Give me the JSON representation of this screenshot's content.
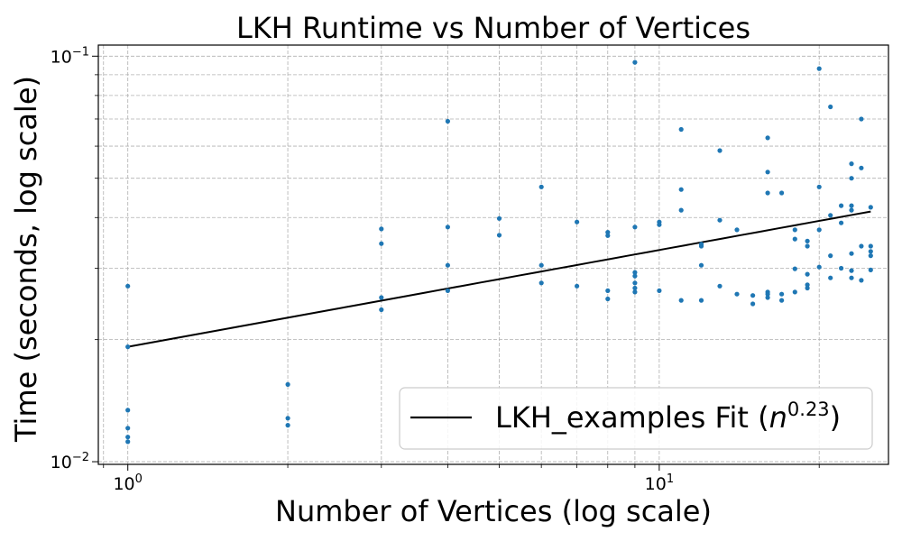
{
  "chart_data": {
    "type": "scatter",
    "title": "LKH Runtime vs Number of Vertices",
    "xlabel": "Number of Vertices (log scale)",
    "ylabel": "Time (seconds, log scale)",
    "xscale": "log",
    "yscale": "log",
    "xlim": [
      0.88,
      27
    ],
    "ylim": [
      0.00985,
      0.1065
    ],
    "grid": true,
    "x_ticks": [
      {
        "value": 1,
        "base": "10",
        "exp": "0"
      },
      {
        "value": 10,
        "base": "10",
        "exp": "1"
      }
    ],
    "y_ticks": [
      {
        "value": 0.01,
        "base": "10",
        "exp": "−2"
      },
      {
        "value": 0.1,
        "base": "10",
        "exp": "−1"
      }
    ],
    "legend": {
      "position": "bottom-right",
      "entries": [
        {
          "label": "LKH_examples Fit (",
          "math_base": "n",
          "math_exp": "0.23",
          "label_end": ")",
          "color": "#000000",
          "marker": "line"
        }
      ]
    },
    "series": [
      {
        "kind": "points",
        "color": "#1f77b4",
        "points": [
          [
            1,
            0.0271
          ],
          [
            1,
            0.0192
          ],
          [
            1,
            0.0134
          ],
          [
            1,
            0.0121
          ],
          [
            1,
            0.0115
          ],
          [
            1,
            0.0112
          ],
          [
            2,
            0.0155
          ],
          [
            2,
            0.0128
          ],
          [
            2,
            0.0123
          ],
          [
            3,
            0.0375
          ],
          [
            3,
            0.0345
          ],
          [
            3,
            0.0254
          ],
          [
            3,
            0.0237
          ],
          [
            4,
            0.0691
          ],
          [
            4,
            0.0379
          ],
          [
            4,
            0.0305
          ],
          [
            4,
            0.0264
          ],
          [
            5,
            0.0398
          ],
          [
            5,
            0.0362
          ],
          [
            6,
            0.0476
          ],
          [
            6,
            0.0305
          ],
          [
            6,
            0.0276
          ],
          [
            7,
            0.039
          ],
          [
            7,
            0.0271
          ],
          [
            8,
            0.0368
          ],
          [
            8,
            0.0361
          ],
          [
            8,
            0.0264
          ],
          [
            8,
            0.0252
          ],
          [
            9,
            0.0966
          ],
          [
            9,
            0.0379
          ],
          [
            9,
            0.0293
          ],
          [
            9,
            0.0287
          ],
          [
            9,
            0.0276
          ],
          [
            9,
            0.0268
          ],
          [
            9,
            0.0262
          ],
          [
            10,
            0.039
          ],
          [
            10,
            0.0384
          ],
          [
            10,
            0.0264
          ],
          [
            11,
            0.066
          ],
          [
            11,
            0.0469
          ],
          [
            11,
            0.0417
          ],
          [
            11,
            0.025
          ],
          [
            12,
            0.0344
          ],
          [
            12,
            0.034
          ],
          [
            12,
            0.0305
          ],
          [
            12,
            0.025
          ],
          [
            13,
            0.0585
          ],
          [
            13,
            0.0394
          ],
          [
            13,
            0.0271
          ],
          [
            14,
            0.0373
          ],
          [
            14,
            0.0259
          ],
          [
            15,
            0.0257
          ],
          [
            15,
            0.0245
          ],
          [
            16,
            0.0629
          ],
          [
            16,
            0.0518
          ],
          [
            16,
            0.046
          ],
          [
            16,
            0.0262
          ],
          [
            16,
            0.0259
          ],
          [
            16,
            0.0254
          ],
          [
            17,
            0.046
          ],
          [
            17,
            0.0259
          ],
          [
            17,
            0.025
          ],
          [
            18,
            0.0373
          ],
          [
            18,
            0.0354
          ],
          [
            18,
            0.0299
          ],
          [
            18,
            0.0262
          ],
          [
            19,
            0.035
          ],
          [
            19,
            0.034
          ],
          [
            19,
            0.029
          ],
          [
            19,
            0.0273
          ],
          [
            19,
            0.0268
          ],
          [
            20,
            0.0932
          ],
          [
            20,
            0.0476
          ],
          [
            20,
            0.0373
          ],
          [
            20,
            0.0302
          ],
          [
            21,
            0.075
          ],
          [
            21,
            0.0405
          ],
          [
            21,
            0.0322
          ],
          [
            21,
            0.0284
          ],
          [
            22,
            0.0428
          ],
          [
            22,
            0.0388
          ],
          [
            22,
            0.03
          ],
          [
            23,
            0.0543
          ],
          [
            23,
            0.05
          ],
          [
            23,
            0.0428
          ],
          [
            23,
            0.0417
          ],
          [
            23,
            0.0326
          ],
          [
            23,
            0.0296
          ],
          [
            23,
            0.0284
          ],
          [
            24,
            0.07
          ],
          [
            24,
            0.053
          ],
          [
            24,
            0.034
          ],
          [
            24,
            0.028
          ],
          [
            25,
            0.0424
          ],
          [
            25,
            0.034
          ],
          [
            25,
            0.033
          ],
          [
            25,
            0.0322
          ],
          [
            25,
            0.0297
          ]
        ]
      },
      {
        "kind": "fit",
        "color": "#000000",
        "x": [
          1,
          25
        ],
        "y": [
          0.0192,
          0.0414
        ]
      }
    ]
  }
}
